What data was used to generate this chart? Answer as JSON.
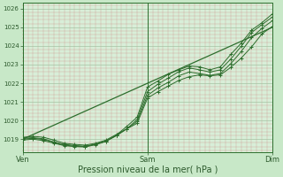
{
  "background_color": "#c8e8c8",
  "plot_bg_color": "#d8eed8",
  "line_color": "#2d6e2d",
  "ylabel_ticks": [
    1019,
    1020,
    1021,
    1022,
    1023,
    1024,
    1025,
    1026
  ],
  "xlim": [
    0,
    48
  ],
  "ylim": [
    1018.3,
    1026.3
  ],
  "xlabel": "Pression niveau de la mer( hPa )",
  "xtick_labels": [
    "Ven",
    "Sam",
    "Dim"
  ],
  "xtick_positions": [
    0,
    24,
    48
  ],
  "lines": [
    [
      0,
      1019.1,
      2,
      1019.15,
      4,
      1019.1,
      6,
      1018.95,
      8,
      1018.78,
      10,
      1018.72,
      12,
      1018.68,
      14,
      1018.78,
      16,
      1018.95,
      18,
      1019.25,
      20,
      1019.55,
      22,
      1019.85,
      24,
      1021.2,
      26,
      1021.55,
      28,
      1021.85,
      30,
      1022.15,
      32,
      1022.35,
      34,
      1022.45,
      36,
      1022.4,
      38,
      1022.45,
      40,
      1022.85,
      42,
      1023.35,
      44,
      1023.95,
      46,
      1024.65,
      48,
      1025.05
    ],
    [
      0,
      1019.05,
      2,
      1019.08,
      4,
      1019.02,
      6,
      1018.85,
      8,
      1018.72,
      10,
      1018.66,
      12,
      1018.62,
      14,
      1018.74,
      16,
      1018.9,
      18,
      1019.2,
      20,
      1019.55,
      22,
      1019.95,
      24,
      1021.35,
      26,
      1021.75,
      28,
      1022.05,
      30,
      1022.4,
      32,
      1022.6,
      34,
      1022.52,
      36,
      1022.42,
      38,
      1022.52,
      40,
      1023.05,
      42,
      1023.7,
      44,
      1024.45,
      46,
      1024.95,
      48,
      1025.35
    ],
    [
      0,
      1019.0,
      2,
      1019.05,
      4,
      1018.98,
      6,
      1018.82,
      8,
      1018.68,
      10,
      1018.62,
      12,
      1018.6,
      14,
      1018.72,
      16,
      1018.88,
      18,
      1019.18,
      20,
      1019.55,
      22,
      1020.05,
      24,
      1021.55,
      26,
      1021.95,
      28,
      1022.28,
      30,
      1022.62,
      32,
      1022.82,
      34,
      1022.72,
      36,
      1022.6,
      38,
      1022.72,
      40,
      1023.3,
      42,
      1023.98,
      44,
      1024.72,
      46,
      1025.15,
      48,
      1025.55
    ],
    [
      0,
      1018.95,
      2,
      1019.0,
      4,
      1018.92,
      6,
      1018.78,
      8,
      1018.65,
      10,
      1018.6,
      12,
      1018.58,
      14,
      1018.7,
      16,
      1018.88,
      18,
      1019.22,
      20,
      1019.68,
      22,
      1020.18,
      24,
      1021.8,
      26,
      1022.12,
      28,
      1022.48,
      30,
      1022.72,
      32,
      1022.92,
      34,
      1022.88,
      36,
      1022.72,
      38,
      1022.88,
      40,
      1023.55,
      42,
      1024.15,
      44,
      1024.85,
      46,
      1025.25,
      48,
      1025.72
    ],
    [
      0,
      1019.0,
      48,
      1025.0
    ]
  ],
  "has_markers": [
    true,
    true,
    true,
    true,
    false
  ],
  "font_size_y": 5,
  "font_size_x": 6,
  "font_size_label": 7
}
